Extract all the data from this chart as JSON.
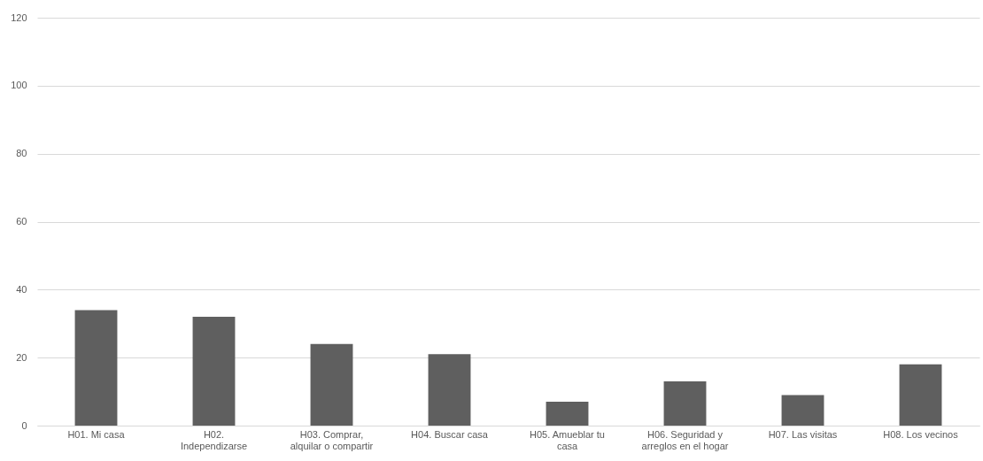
{
  "chart_data": {
    "type": "bar",
    "categories": [
      "H01. Mi casa",
      "H02. Independizarse",
      "H03. Comprar, alquilar o compartir",
      "H04. Buscar casa",
      "H05. Amueblar tu casa",
      "H06. Seguridad y arreglos en el hogar",
      "H07. Las visitas",
      "H08. Los vecinos"
    ],
    "values": [
      34,
      32,
      24,
      21,
      7,
      13,
      9,
      18
    ],
    "color": "#5f5f5f",
    "ylim": [
      0,
      120
    ],
    "yticks": [
      0,
      20,
      40,
      60,
      80,
      100,
      120
    ],
    "grid": "y"
  }
}
